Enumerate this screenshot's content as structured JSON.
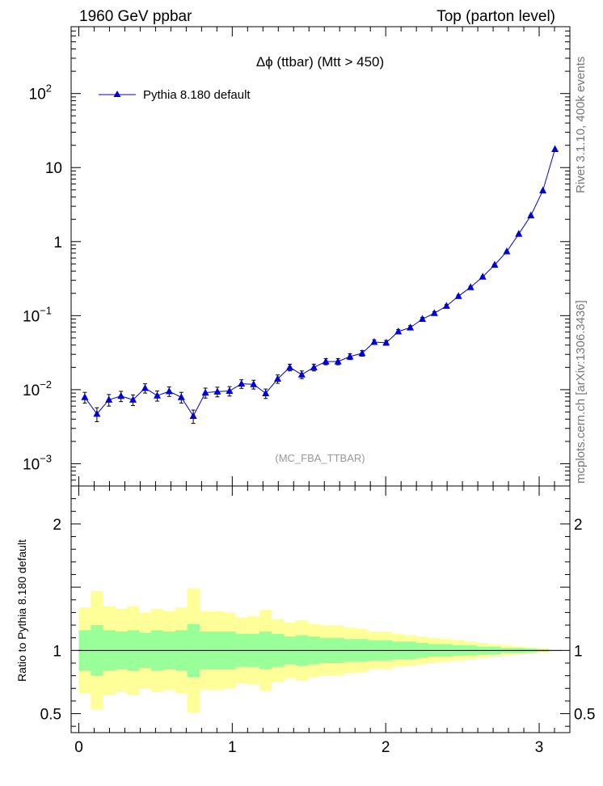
{
  "header": {
    "left": "1960 GeV ppbar",
    "right": "Top (parton level)"
  },
  "side_labels": {
    "rivet": "Rivet 3.1.10, 400k events",
    "mcplots": "mcplots.cern.ch [arXiv:1306.3436]"
  },
  "ratio_ylabel": "Ratio to Pythia 8.180 default",
  "colors": {
    "series": "#0000dd",
    "band_inner": "#99ff99",
    "band_outer": "#ffff99"
  },
  "chart_data": [
    {
      "type": "line",
      "title": "Δϕ (ttbar) (Mtt > 450)",
      "watermark": "(MC_FBA_TTBAR)",
      "xlim": [
        -0.05,
        3.2
      ],
      "ylim": [
        0.0005,
        800
      ],
      "yscale": "log",
      "yticks": [
        {
          "v": 0.001,
          "base": "10",
          "exp": "−3"
        },
        {
          "v": 0.01,
          "base": "10",
          "exp": "−2"
        },
        {
          "v": 0.1,
          "base": "10",
          "exp": "−1"
        },
        {
          "v": 1,
          "base": "1",
          "exp": ""
        },
        {
          "v": 10,
          "base": "10",
          "exp": ""
        },
        {
          "v": 100,
          "base": "10",
          "exp": "2"
        }
      ],
      "legend_position": "top-left",
      "series": [
        {
          "name": "Pythia 8.180 default",
          "x": [
            0.039,
            0.118,
            0.196,
            0.275,
            0.353,
            0.432,
            0.511,
            0.589,
            0.668,
            0.746,
            0.825,
            0.903,
            0.982,
            1.06,
            1.139,
            1.218,
            1.296,
            1.375,
            1.453,
            1.532,
            1.61,
            1.689,
            1.767,
            1.846,
            1.925,
            2.003,
            2.082,
            2.16,
            2.239,
            2.317,
            2.396,
            2.474,
            2.553,
            2.632,
            2.71,
            2.789,
            2.867,
            2.946,
            3.024,
            3.103
          ],
          "y": [
            0.0079,
            0.0047,
            0.0073,
            0.0082,
            0.0073,
            0.0105,
            0.0083,
            0.0095,
            0.0079,
            0.0044,
            0.0091,
            0.0094,
            0.0096,
            0.012,
            0.0118,
            0.0089,
            0.014,
            0.02,
            0.016,
            0.02,
            0.024,
            0.024,
            0.028,
            0.031,
            0.044,
            0.043,
            0.061,
            0.069,
            0.09,
            0.108,
            0.135,
            0.183,
            0.242,
            0.335,
            0.485,
            0.736,
            1.27,
            2.25,
            4.9,
            17.7
          ],
          "yerr": [
            0.0013,
            0.001,
            0.0013,
            0.0013,
            0.0012,
            0.0015,
            0.0013,
            0.0014,
            0.0013,
            0.0009,
            0.0014,
            0.0014,
            0.0014,
            0.0016,
            0.0016,
            0.0013,
            0.0018,
            0.0021,
            0.0019,
            0.0021,
            0.0023,
            0.0023,
            0.0025,
            0.0027,
            0.0032,
            0.0032,
            0.0038,
            0.0041,
            0.0046,
            0.0051,
            0.0057,
            0.0066,
            0.0075,
            0.0088,
            0.0106,
            0.013,
            0.017,
            0.023,
            0.033,
            0.06
          ]
        }
      ]
    },
    {
      "type": "area",
      "ylabel": "Ratio to Pythia 8.180 default",
      "xlim": [
        -0.05,
        3.2
      ],
      "ylim": [
        0.35,
        2.3
      ],
      "xticks": [
        0,
        1,
        2,
        3
      ],
      "yticks": [
        0.5,
        1,
        2
      ],
      "reference_line": 1,
      "bins": [
        0,
        0.0785,
        0.157,
        0.2355,
        0.314,
        0.3925,
        0.471,
        0.5495,
        0.628,
        0.7065,
        0.785,
        0.8635,
        0.942,
        1.0205,
        1.099,
        1.1775,
        1.256,
        1.3345,
        1.413,
        1.4915,
        1.57,
        1.6485,
        1.727,
        1.8055,
        1.884,
        1.9625,
        2.041,
        2.1195,
        2.198,
        2.2765,
        2.355,
        2.4335,
        2.512,
        2.5905,
        2.669,
        2.7475,
        2.826,
        2.9045,
        2.983,
        3.0615,
        3.1416
      ],
      "series": [
        {
          "name": "1 sigma",
          "lo": [
            0.84,
            0.8,
            0.84,
            0.85,
            0.84,
            0.86,
            0.84,
            0.85,
            0.84,
            0.79,
            0.85,
            0.85,
            0.85,
            0.87,
            0.87,
            0.85,
            0.87,
            0.89,
            0.88,
            0.89,
            0.9,
            0.9,
            0.91,
            0.91,
            0.92,
            0.92,
            0.93,
            0.93,
            0.94,
            0.95,
            0.95,
            0.96,
            0.96,
            0.97,
            0.97,
            0.98,
            0.98,
            0.985,
            0.99,
            0.995
          ],
          "hi": [
            1.16,
            1.2,
            1.16,
            1.15,
            1.16,
            1.14,
            1.16,
            1.15,
            1.16,
            1.21,
            1.15,
            1.15,
            1.15,
            1.13,
            1.13,
            1.15,
            1.13,
            1.11,
            1.12,
            1.11,
            1.1,
            1.1,
            1.09,
            1.09,
            1.08,
            1.08,
            1.07,
            1.07,
            1.06,
            1.05,
            1.05,
            1.04,
            1.04,
            1.03,
            1.03,
            1.02,
            1.02,
            1.015,
            1.01,
            1.005
          ]
        },
        {
          "name": "2 sigma",
          "lo": [
            0.66,
            0.53,
            0.65,
            0.67,
            0.65,
            0.7,
            0.67,
            0.69,
            0.66,
            0.51,
            0.69,
            0.69,
            0.7,
            0.74,
            0.73,
            0.68,
            0.75,
            0.78,
            0.76,
            0.79,
            0.8,
            0.8,
            0.82,
            0.83,
            0.85,
            0.85,
            0.87,
            0.88,
            0.89,
            0.9,
            0.91,
            0.92,
            0.93,
            0.94,
            0.95,
            0.96,
            0.97,
            0.975,
            0.985,
            0.995
          ],
          "hi": [
            1.34,
            1.47,
            1.35,
            1.33,
            1.35,
            1.3,
            1.33,
            1.31,
            1.34,
            1.49,
            1.31,
            1.31,
            1.3,
            1.26,
            1.27,
            1.32,
            1.25,
            1.22,
            1.24,
            1.21,
            1.2,
            1.2,
            1.18,
            1.17,
            1.15,
            1.15,
            1.13,
            1.12,
            1.11,
            1.1,
            1.09,
            1.08,
            1.07,
            1.06,
            1.05,
            1.04,
            1.03,
            1.025,
            1.015,
            1.005
          ]
        }
      ]
    }
  ]
}
